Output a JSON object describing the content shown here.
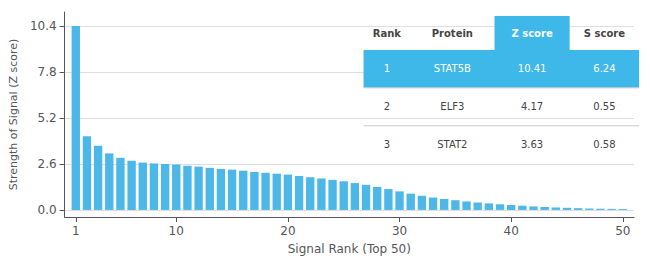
{
  "chart_data": {
    "type": "bar",
    "x": [
      1,
      2,
      3,
      4,
      5,
      6,
      7,
      8,
      9,
      10,
      11,
      12,
      13,
      14,
      15,
      16,
      17,
      18,
      19,
      20,
      21,
      22,
      23,
      24,
      25,
      26,
      27,
      28,
      29,
      30,
      31,
      32,
      33,
      34,
      35,
      36,
      37,
      38,
      39,
      40,
      41,
      42,
      43,
      44,
      45,
      46,
      47,
      48,
      49,
      50
    ],
    "values": [
      10.41,
      4.17,
      3.63,
      3.2,
      2.95,
      2.78,
      2.68,
      2.63,
      2.6,
      2.57,
      2.5,
      2.45,
      2.38,
      2.32,
      2.28,
      2.22,
      2.15,
      2.1,
      2.05,
      2.0,
      1.92,
      1.85,
      1.78,
      1.7,
      1.62,
      1.52,
      1.42,
      1.3,
      1.18,
      1.05,
      0.92,
      0.8,
      0.7,
      0.62,
      0.55,
      0.48,
      0.42,
      0.37,
      0.32,
      0.28,
      0.24,
      0.2,
      0.17,
      0.14,
      0.12,
      0.1,
      0.08,
      0.07,
      0.06,
      0.05
    ],
    "color": "#4db8e8",
    "xlabel": "Signal Rank (Top 50)",
    "ylabel": "Strength of Signal (Z score)",
    "xlim": [
      0,
      51
    ],
    "xticks": [
      1,
      10,
      20,
      30,
      40,
      50
    ],
    "ylim": [
      -0.4,
      11.2
    ],
    "yticks": [
      {
        "value": 0,
        "label": "0.0"
      },
      2.6,
      5.2,
      7.8,
      10.4
    ],
    "grid": true,
    "table": {
      "headers": [
        "Rank",
        "Protein",
        "Z score",
        "S score"
      ],
      "rows": [
        [
          "1",
          "STAT5B",
          "10.41",
          "6.24"
        ],
        [
          "2",
          "ELF3",
          "4.17",
          "0.55"
        ],
        [
          "3",
          "STAT2",
          "3.63",
          "0.58"
        ]
      ],
      "color": "#3db8e8"
    }
  }
}
